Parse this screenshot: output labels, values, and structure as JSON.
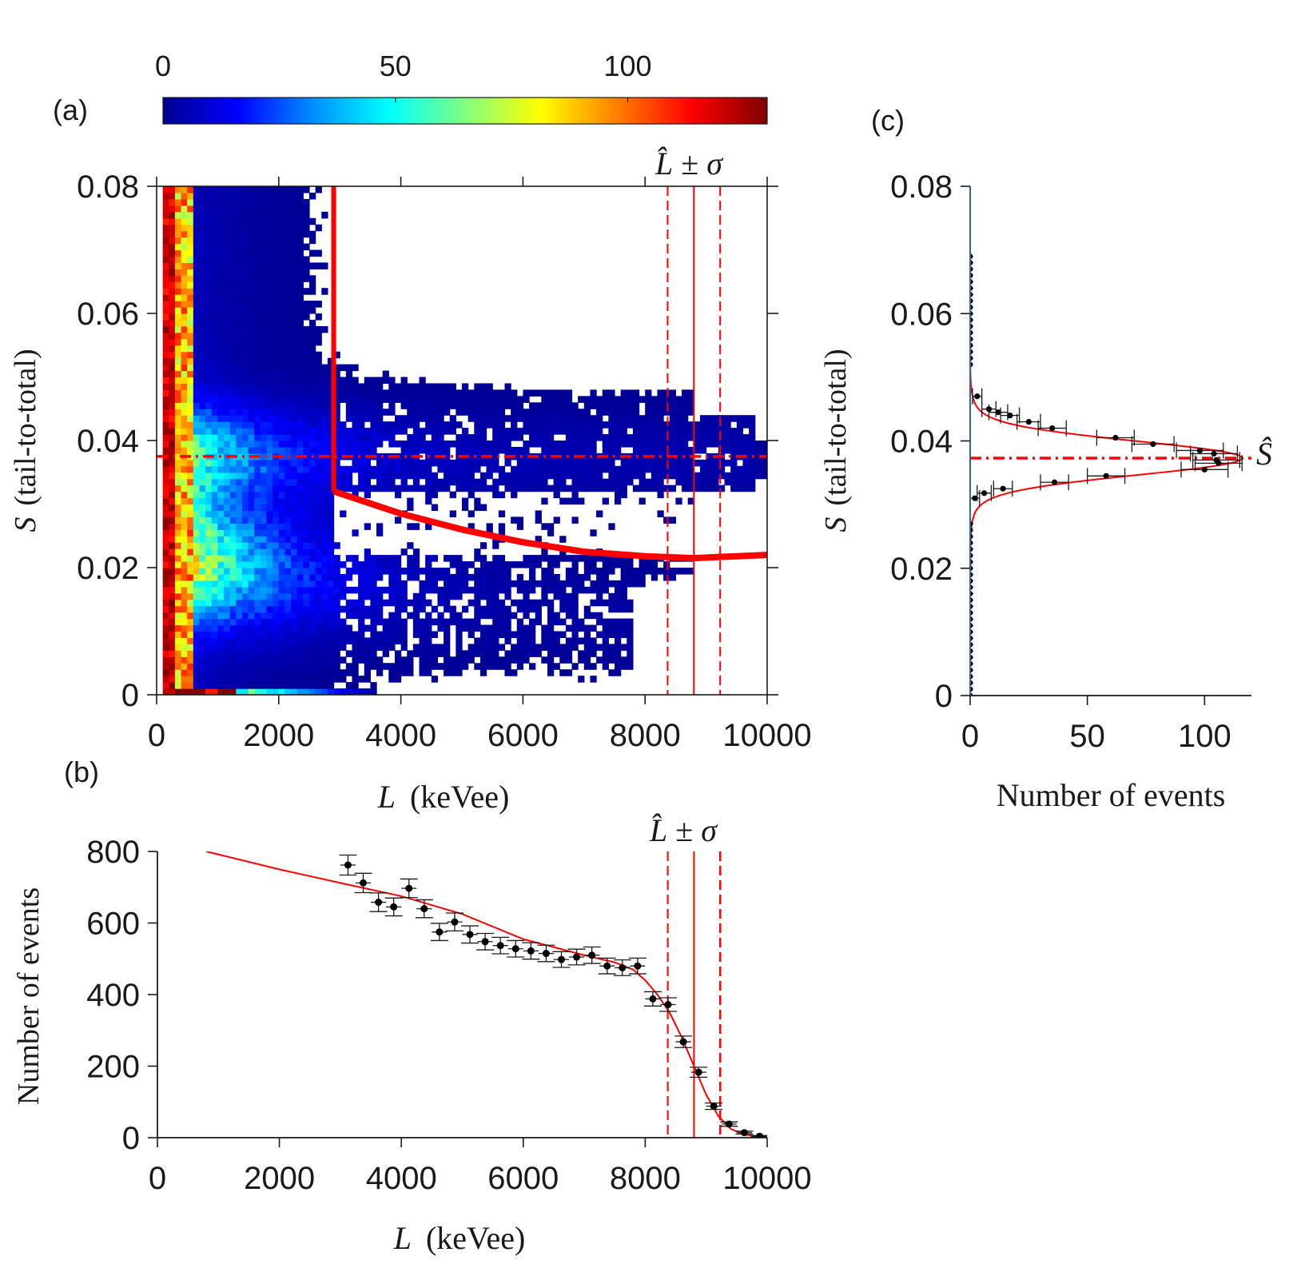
{
  "panels": {
    "a": {
      "label": "(a)"
    },
    "b": {
      "label": "(b)"
    },
    "c": {
      "label": "(c)"
    }
  },
  "colorbar": {
    "ticks": [
      "0",
      "50",
      "100"
    ],
    "tick_values": [
      0,
      50,
      100
    ],
    "range": [
      0,
      130
    ],
    "stops": [
      "#00008f",
      "#0000ff",
      "#0090ff",
      "#00ffff",
      "#80ff80",
      "#ffff00",
      "#ff8000",
      "#ff0000",
      "#800000"
    ]
  },
  "annotations": {
    "lhat_symbol": "L̂",
    "pm_symbol": "±",
    "sigma_symbol": "σ",
    "shat_label": "Ŝ"
  },
  "axes": {
    "s_symbol": "S",
    "s_rest": "(tail-to-total)",
    "l_symbol": "L",
    "l_rest": "(keVee)",
    "count_label": "Number of events"
  },
  "colors": {
    "fit": "#ff0000",
    "points": "#000000",
    "cut": "#ff0000"
  },
  "chart_data": [
    {
      "id": "a",
      "type": "heatmap",
      "title": "",
      "xlabel": "L (keVee)",
      "ylabel": "S (tail-to-total)",
      "xlim": [
        0,
        10000
      ],
      "ylim": [
        0,
        0.08
      ],
      "xticks": [
        0,
        2000,
        4000,
        6000,
        8000,
        10000
      ],
      "xtick_labels": [
        "0",
        "2000",
        "4000",
        "6000",
        "8000",
        "10000"
      ],
      "yticks": [
        0,
        0.02,
        0.04,
        0.06,
        0.08
      ],
      "ytick_labels": [
        "0",
        "0.02",
        "0.04",
        "0.06",
        "0.08"
      ],
      "gamma_band_S": 0.0375,
      "cut_L": 2900,
      "cut_curve": {
        "L": [
          2900,
          4000,
          5000,
          6000,
          7000,
          8000,
          8800,
          10000
        ],
        "S": [
          0.032,
          0.0285,
          0.026,
          0.024,
          0.0225,
          0.0218,
          0.0215,
          0.022
        ]
      },
      "L_hat": 8800,
      "L_sigma": 430,
      "L_minus": 8370,
      "L_plus": 9230
    },
    {
      "id": "b",
      "type": "scatter",
      "xlabel": "L (keVee)",
      "ylabel": "Number of events",
      "xlim": [
        0,
        10000
      ],
      "ylim": [
        0,
        800
      ],
      "xticks": [
        0,
        2000,
        4000,
        6000,
        8000,
        10000
      ],
      "xtick_labels": [
        "0",
        "2000",
        "4000",
        "6000",
        "8000",
        "10000"
      ],
      "yticks": [
        0,
        200,
        400,
        600,
        800
      ],
      "ytick_labels": [
        "0",
        "200",
        "400",
        "600",
        "800"
      ],
      "x": [
        3125,
        3375,
        3625,
        3875,
        4125,
        4375,
        4625,
        4875,
        5125,
        5375,
        5625,
        5875,
        6125,
        6375,
        6625,
        6875,
        7125,
        7375,
        7625,
        7875,
        8125,
        8375,
        8625,
        8875,
        9125,
        9375,
        9625,
        9875
      ],
      "y": [
        762,
        712,
        658,
        645,
        697,
        640,
        575,
        603,
        568,
        548,
        537,
        528,
        522,
        515,
        498,
        505,
        510,
        480,
        475,
        480,
        388,
        372,
        268,
        183,
        88,
        38,
        14,
        4
      ],
      "yerr": [
        28,
        27,
        26,
        25,
        26,
        25,
        24,
        25,
        24,
        23,
        23,
        23,
        23,
        23,
        22,
        22,
        23,
        22,
        22,
        22,
        20,
        19,
        16,
        14,
        9,
        6,
        4,
        2
      ],
      "fit": {
        "L": [
          800,
          2000,
          3000,
          4000,
          5000,
          6000,
          7000,
          7500,
          7800,
          8000,
          8200,
          8400,
          8600,
          8800,
          9000,
          9200,
          9400,
          9600,
          9800,
          10000
        ],
        "N": [
          800,
          750,
          712,
          675,
          625,
          555,
          510,
          490,
          470,
          440,
          400,
          350,
          280,
          200,
          120,
          60,
          25,
          10,
          4,
          2
        ]
      },
      "L_hat": 8800,
      "L_minus": 8370,
      "L_plus": 9230
    },
    {
      "id": "c",
      "type": "scatter",
      "xlabel": "Number of events",
      "ylabel": "S (tail-to-total)",
      "xlim": [
        0,
        120
      ],
      "ylim": [
        0,
        0.08
      ],
      "xticks": [
        0,
        50,
        100
      ],
      "xtick_labels": [
        "0",
        "50",
        "100"
      ],
      "yticks": [
        0,
        0.02,
        0.04,
        0.06,
        0.08
      ],
      "ytick_labels": [
        "0",
        "0.02",
        "0.04",
        "0.06",
        "0.08"
      ],
      "S": [
        0.047,
        0.045,
        0.0445,
        0.044,
        0.043,
        0.042,
        0.0405,
        0.0395,
        0.0385,
        0.038,
        0.037,
        0.0365,
        0.0355,
        0.0345,
        0.0335,
        0.0325,
        0.0318,
        0.031
      ],
      "N": [
        3,
        8,
        12,
        17,
        25,
        35,
        62,
        78,
        98,
        104,
        105,
        106,
        100,
        58,
        36,
        14,
        6,
        2
      ],
      "xerr": [
        2,
        3,
        4,
        4,
        5,
        6,
        8,
        9,
        10,
        10,
        10,
        10,
        10,
        8,
        6,
        4,
        3,
        2
      ],
      "fit": {
        "peak_S": 0.0373,
        "sigma_S": 0.0026,
        "amplitude": 106,
        "tail_amp": 10,
        "tail_sigma": 0.0045
      },
      "S_hat": 0.0373
    }
  ]
}
